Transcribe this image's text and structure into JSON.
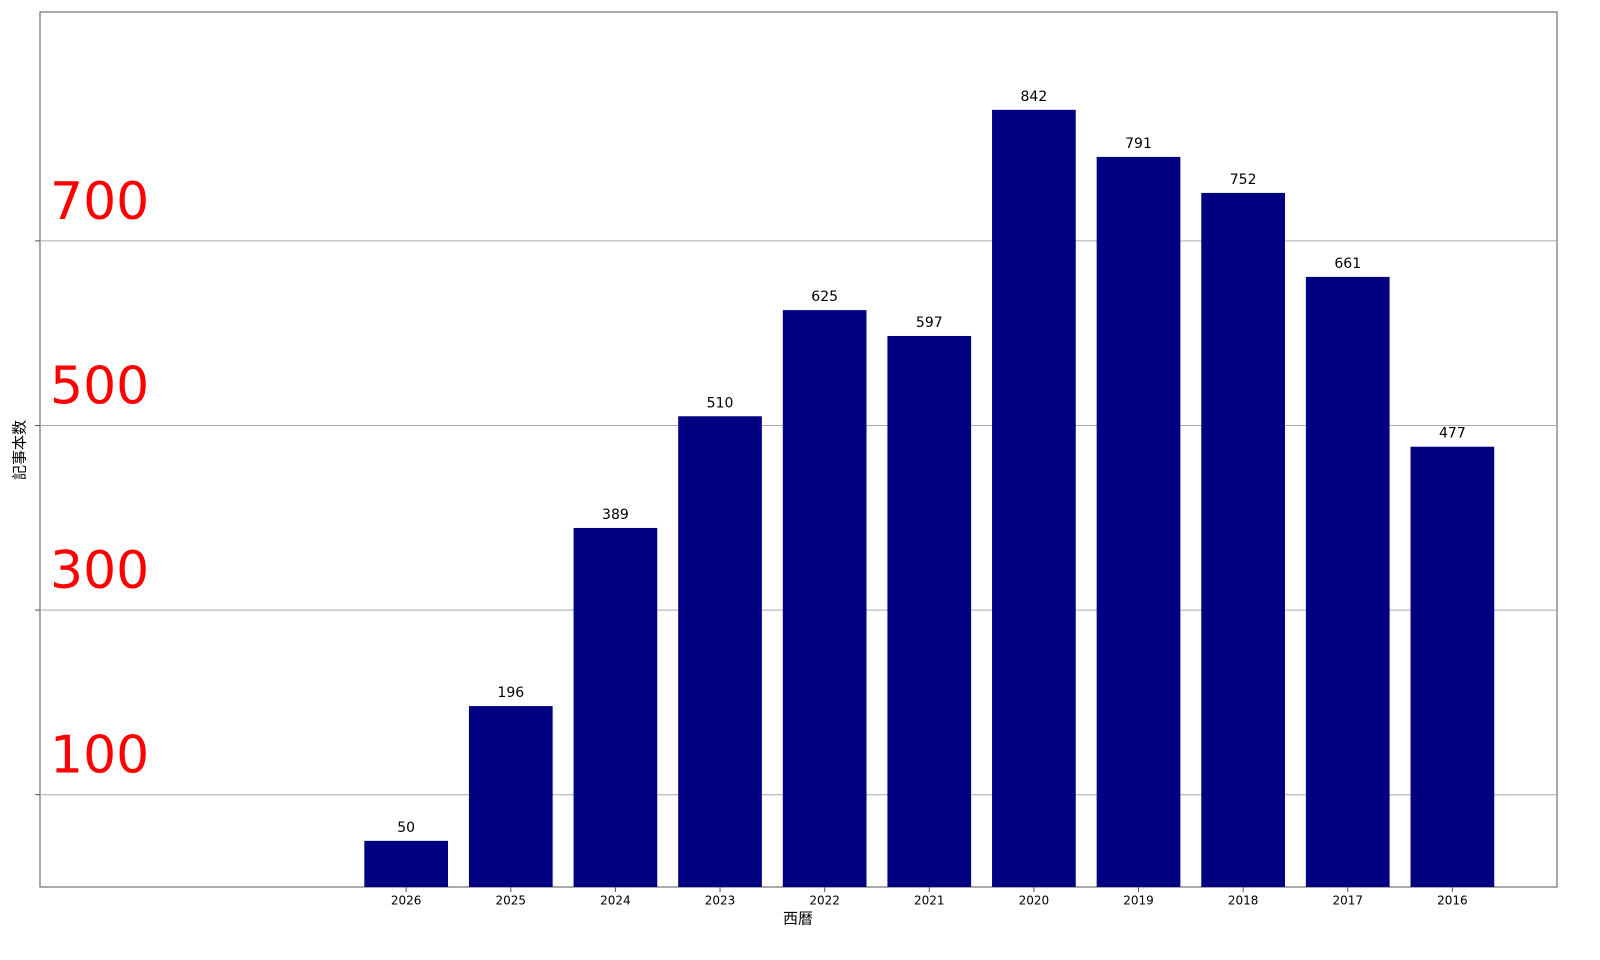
{
  "chart_data": {
    "type": "bar",
    "x_label": "西暦",
    "y_label": "記事本数",
    "categories": [
      "2026",
      "2025",
      "2024",
      "2023",
      "2022",
      "2021",
      "2020",
      "2019",
      "2018",
      "2017",
      "2016"
    ],
    "values": [
      50,
      196,
      389,
      510,
      625,
      597,
      842,
      791,
      752,
      661,
      477
    ],
    "color": "#000080",
    "xlim": [
      -3.5,
      11
    ],
    "ylim": [
      0,
      948
    ],
    "yticks": [
      100,
      300,
      500,
      700
    ],
    "ytick_color": "#ff0000",
    "grid": true
  }
}
